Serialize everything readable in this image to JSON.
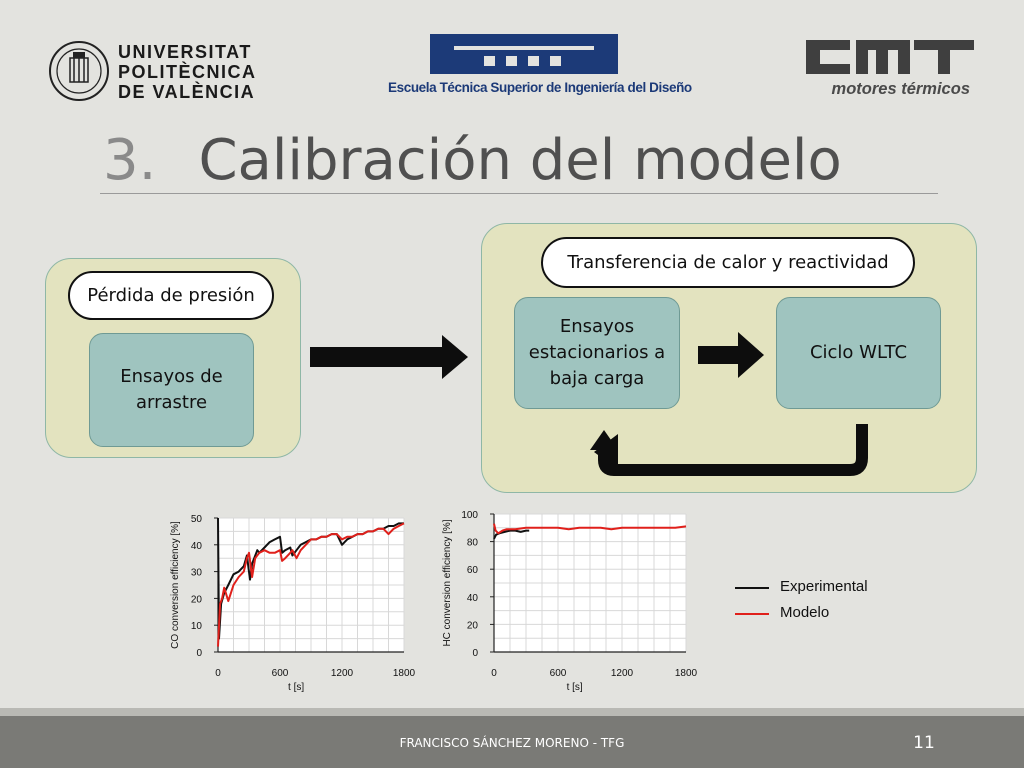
{
  "header": {
    "university": {
      "line1": "UNIVERSITAT",
      "line2": "POLITÈCNICA",
      "line3": "DE VALÈNCIA"
    },
    "school": {
      "name": "Escuela Técnica Superior de Ingeniería del Diseño"
    },
    "institute": {
      "name": "motores térmicos"
    }
  },
  "slide": {
    "number_prefix": "3.",
    "title": "Calibración del modelo"
  },
  "diagram": {
    "left_group": {
      "label": "Pérdida de presión",
      "box": "Ensayos de arrastre"
    },
    "right_group": {
      "label": "Transferencia de calor y reactividad",
      "box1": "Ensayos estacionarios a baja carga",
      "box2": "Ciclo WLTC"
    }
  },
  "chart_data": [
    {
      "type": "line",
      "xlabel": "t [s]",
      "ylabel": "CO conversion efficiency [%]",
      "xlim": [
        0,
        1800
      ],
      "ylim": [
        0,
        50
      ],
      "xticks": [
        0,
        600,
        1200,
        1800
      ],
      "yticks": [
        0,
        10,
        20,
        30,
        40,
        50
      ],
      "grid": true,
      "series": [
        {
          "name": "Experimental",
          "color": "#111111",
          "x": [
            0,
            10,
            30,
            60,
            100,
            150,
            200,
            250,
            280,
            310,
            330,
            350,
            380,
            400,
            450,
            500,
            550,
            600,
            620,
            650,
            700,
            720,
            760,
            800,
            850,
            900,
            950,
            1000,
            1050,
            1100,
            1150,
            1200,
            1250,
            1300,
            1350,
            1400,
            1450,
            1500,
            1550,
            1600,
            1650,
            1700,
            1750,
            1800
          ],
          "y": [
            50,
            5,
            18,
            22,
            25,
            29,
            30,
            32,
            36,
            27,
            33,
            35,
            38,
            37,
            39,
            41,
            42,
            43,
            37,
            38,
            39,
            36,
            38,
            40,
            41,
            42,
            42,
            43,
            43,
            44,
            44,
            40,
            42,
            43,
            44,
            44,
            45,
            45,
            46,
            46,
            47,
            47,
            48,
            48
          ]
        },
        {
          "name": "Modelo",
          "color": "#e0201b",
          "x": [
            0,
            20,
            40,
            60,
            100,
            150,
            200,
            250,
            280,
            300,
            330,
            360,
            400,
            450,
            500,
            550,
            600,
            620,
            650,
            700,
            720,
            760,
            800,
            850,
            900,
            950,
            1000,
            1050,
            1100,
            1150,
            1200,
            1250,
            1300,
            1350,
            1400,
            1450,
            1500,
            1550,
            1600,
            1650,
            1700,
            1750,
            1800
          ],
          "y": [
            2,
            18,
            20,
            24,
            19,
            25,
            28,
            30,
            35,
            37,
            28,
            35,
            37,
            38,
            37,
            37,
            38,
            34,
            35,
            37,
            38,
            35,
            38,
            40,
            42,
            42,
            43,
            43,
            44,
            44,
            42,
            43,
            43,
            44,
            44,
            45,
            45,
            46,
            46,
            44,
            46,
            47,
            48
          ]
        }
      ]
    },
    {
      "type": "line",
      "xlabel": "t [s]",
      "ylabel": "HC conversion efficiency [%]",
      "xlim": [
        0,
        1800
      ],
      "ylim": [
        0,
        100
      ],
      "xticks": [
        0,
        600,
        1200,
        1800
      ],
      "yticks": [
        0,
        20,
        40,
        60,
        80,
        100
      ],
      "grid": true,
      "series": [
        {
          "name": "Experimental",
          "color": "#111111",
          "x": [
            0,
            20,
            50,
            100,
            150,
            200,
            250,
            300,
            330
          ],
          "y": [
            82,
            85,
            86,
            87,
            88,
            88,
            87,
            88,
            88
          ]
        },
        {
          "name": "Modelo",
          "color": "#e0201b",
          "x": [
            0,
            15,
            40,
            80,
            120,
            200,
            300,
            400,
            500,
            600,
            700,
            800,
            900,
            1000,
            1100,
            1200,
            1300,
            1400,
            1500,
            1600,
            1700,
            1800
          ],
          "y": [
            93,
            88,
            86,
            88,
            89,
            89,
            90,
            90,
            90,
            90,
            89,
            90,
            90,
            90,
            89,
            90,
            90,
            90,
            90,
            90,
            90,
            91
          ]
        }
      ]
    }
  ],
  "legend": {
    "experimental": {
      "label": "Experimental",
      "color": "#111111"
    },
    "modelo": {
      "label": "Modelo",
      "color": "#e0201b"
    }
  },
  "footer": {
    "author": "FRANCISCO SÁNCHEZ MORENO - TFG",
    "page": "11"
  }
}
